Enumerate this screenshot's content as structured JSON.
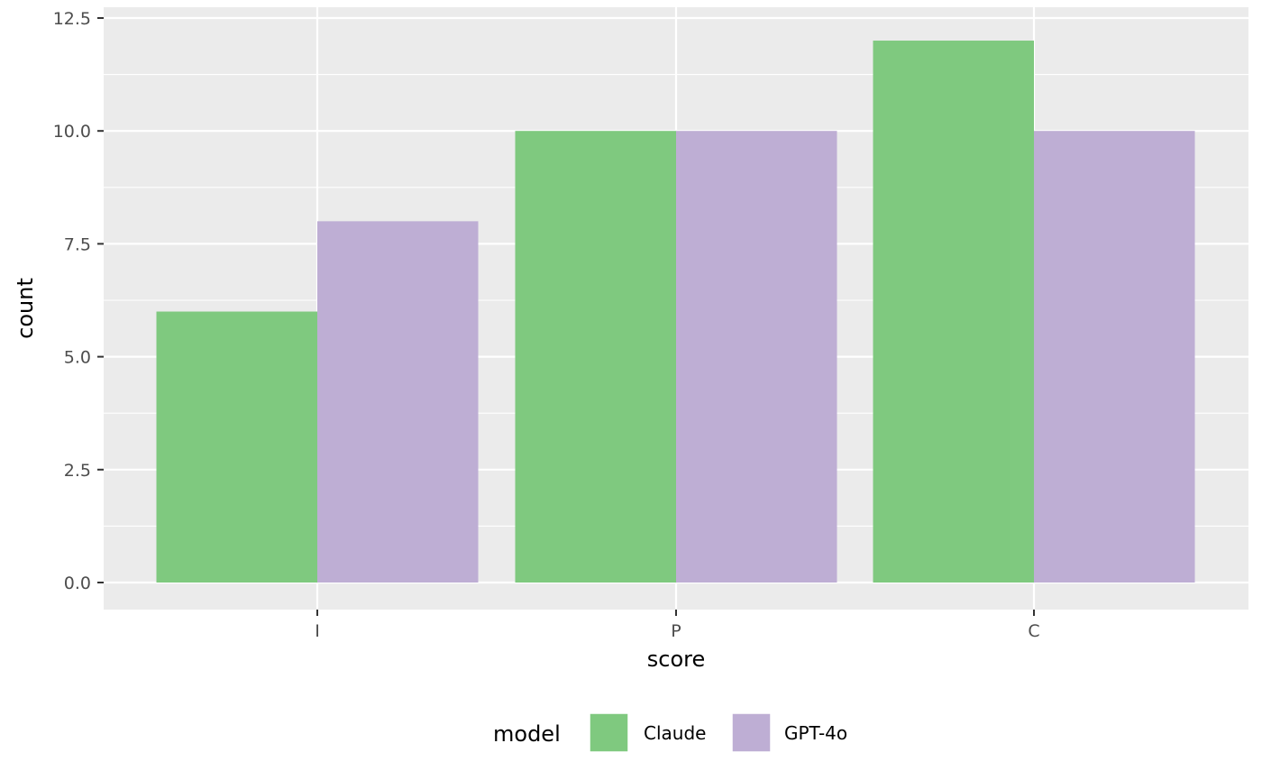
{
  "chart_data": {
    "type": "bar",
    "categories": [
      "I",
      "P",
      "C"
    ],
    "series": [
      {
        "name": "Claude",
        "values": [
          6,
          10,
          12
        ],
        "color": "#7fc97f"
      },
      {
        "name": "GPT-4o",
        "values": [
          8,
          10,
          10
        ],
        "color": "#beaed4"
      }
    ],
    "xlabel": "score",
    "ylabel": "count",
    "ylim": [
      0,
      12.5
    ],
    "yticks": [
      "0.0",
      "2.5",
      "5.0",
      "7.5",
      "10.0",
      "12.5"
    ],
    "grid": true,
    "legend": {
      "title": "model",
      "position": "bottom"
    },
    "panel_background": "#ebebeb"
  }
}
